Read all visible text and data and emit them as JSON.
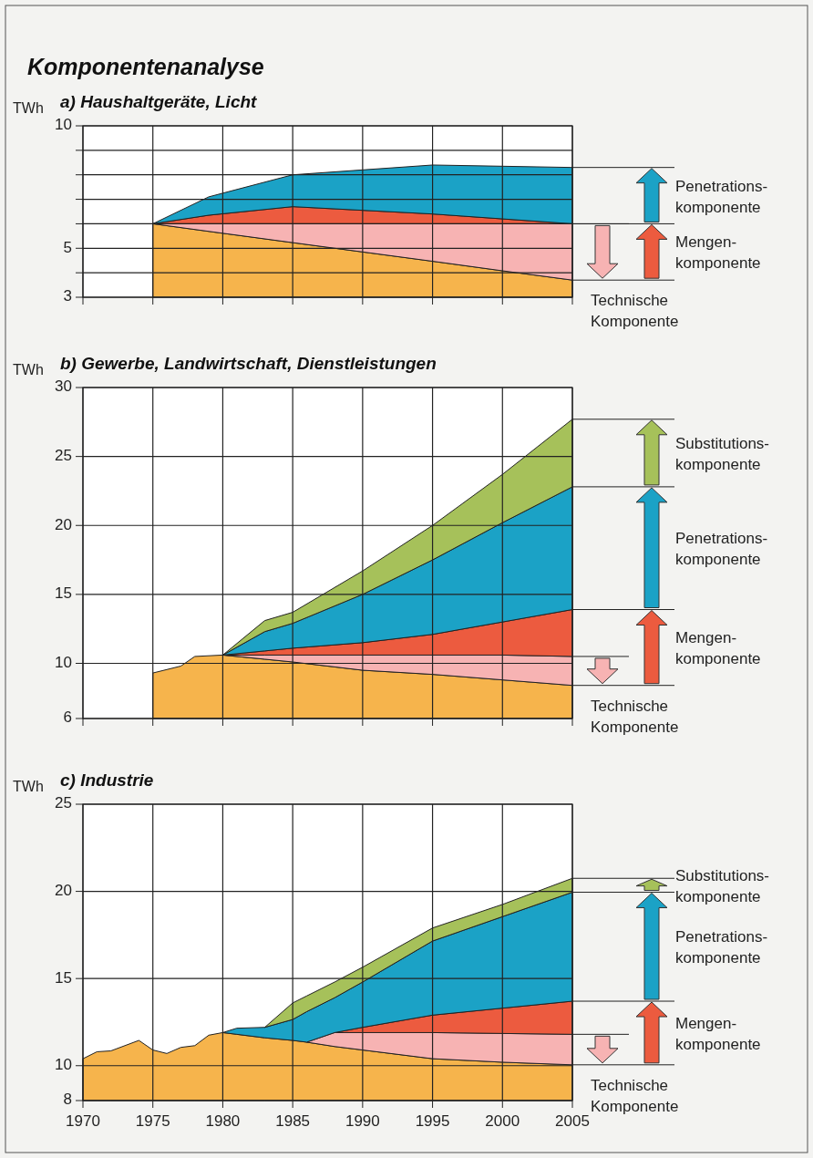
{
  "chart_data": [
    {
      "type": "area",
      "title": "Komponentenanalyse",
      "subtitle": "a) Haushaltgeräte, Licht",
      "ylabel": "TWh",
      "x": [
        1975,
        1979,
        1985,
        1990,
        1995,
        2000,
        2005
      ],
      "series": [
        {
          "color": "#f6b44c",
          "values": [
            6.0,
            5.69,
            5.23,
            4.85,
            4.47,
            4.08,
            3.7
          ]
        },
        {
          "name": "Technische Komponente",
          "color": "#f7b3b3",
          "values": [
            6.0,
            6.0,
            6.0,
            6.0,
            6.0,
            6.0,
            6.0
          ]
        },
        {
          "name": "Mengen- komponente",
          "color": "#ec5b3f",
          "values": [
            6.0,
            6.35,
            6.7,
            6.55,
            6.4,
            6.2,
            6.0
          ]
        },
        {
          "name": "Penetrations- komponente",
          "color": "#1ba2c6",
          "values": [
            6.0,
            7.1,
            8.0,
            8.2,
            8.4,
            8.35,
            8.3
          ]
        }
      ],
      "xlim": [
        1970,
        2005
      ],
      "xticks": [
        1970,
        1975,
        1980,
        1985,
        1990,
        1995,
        2000,
        2005
      ],
      "ylim": [
        3,
        10
      ],
      "yticks": [
        3,
        {
          "value": 4,
          "label": null
        },
        5,
        {
          "value": 6,
          "label": null
        },
        {
          "value": 7,
          "label": null
        },
        {
          "value": 8,
          "label": null
        },
        {
          "value": 9,
          "label": null
        },
        10
      ],
      "grid": true,
      "tick_labels": "y"
    },
    {
      "type": "area",
      "title": "b) Gewerbe, Landwirtschaft, Dienstleistungen",
      "ylabel": "TWh",
      "x": [
        1975,
        1977,
        1978,
        1980,
        1983,
        1985,
        1990,
        1995,
        2000,
        2005
      ],
      "series": [
        {
          "color": "#f6b44c",
          "values": [
            9.3,
            9.8,
            10.5,
            10.6,
            10.3,
            10.1,
            9.5,
            9.2,
            8.8,
            8.4
          ]
        },
        {
          "name": "Technische Komponente",
          "color": "#f7b3b3",
          "values": [
            null,
            null,
            null,
            10.6,
            10.6,
            10.6,
            10.6,
            10.6,
            10.6,
            10.5
          ]
        },
        {
          "name": "Mengen- komponente",
          "color": "#ec5b3f",
          "values": [
            null,
            null,
            null,
            10.6,
            10.9,
            11.1,
            11.5,
            12.1,
            13.0,
            13.9
          ]
        },
        {
          "name": "Penetrations- komponente",
          "color": "#1ba2c6",
          "values": [
            null,
            null,
            null,
            10.6,
            12.3,
            12.9,
            15.0,
            17.5,
            20.2,
            22.8
          ]
        },
        {
          "name": "Substitutions- komponente",
          "color": "#a6c15a",
          "values": [
            null,
            null,
            null,
            10.6,
            13.1,
            13.7,
            16.7,
            20.0,
            23.7,
            27.7
          ]
        }
      ],
      "xlim": [
        1970,
        2005
      ],
      "xticks": [
        1970,
        1975,
        1980,
        1985,
        1990,
        1995,
        2000,
        2005
      ],
      "ylim": [
        6,
        30
      ],
      "yticks": [
        6,
        10,
        15,
        20,
        25,
        30
      ],
      "grid": true,
      "tick_labels": "y"
    },
    {
      "type": "area",
      "title": "c) Industrie",
      "ylabel": "TWh",
      "x": [
        1970,
        1971,
        1972,
        1973,
        1974,
        1975,
        1976,
        1977,
        1978,
        1979,
        1980,
        1981,
        1983,
        1985,
        1986,
        1988,
        1990,
        1995,
        2000,
        2005
      ],
      "series": [
        {
          "color": "#f6b44c",
          "values": [
            10.4,
            10.8,
            10.85,
            11.15,
            11.45,
            10.9,
            10.7,
            11.05,
            11.15,
            11.75,
            11.9,
            11.8,
            11.6,
            11.45,
            11.35,
            11.1,
            10.9,
            10.4,
            10.2,
            10.05
          ]
        },
        {
          "name": "Technische Komponente",
          "color": "#f7b3b3",
          "values": [
            null,
            null,
            null,
            null,
            null,
            null,
            null,
            null,
            null,
            null,
            null,
            null,
            null,
            null,
            11.35,
            11.9,
            11.9,
            11.9,
            11.85,
            11.8
          ]
        },
        {
          "name": "Mengen- komponente",
          "color": "#ec5b3f",
          "values": [
            null,
            null,
            null,
            null,
            null,
            null,
            null,
            null,
            null,
            null,
            null,
            null,
            null,
            null,
            null,
            11.9,
            12.2,
            12.9,
            13.3,
            13.7
          ]
        },
        {
          "name": "Penetrations- komponente",
          "color": "#1ba2c6",
          "values": [
            null,
            null,
            null,
            null,
            null,
            null,
            null,
            null,
            null,
            null,
            11.9,
            12.15,
            12.2,
            12.65,
            13.1,
            13.9,
            14.8,
            17.15,
            18.55,
            19.95
          ]
        },
        {
          "name": "Substitutions- komponente",
          "color": "#a6c15a",
          "values": [
            null,
            null,
            null,
            null,
            null,
            null,
            null,
            null,
            null,
            null,
            null,
            null,
            12.2,
            13.6,
            14.0,
            14.8,
            15.65,
            17.9,
            19.25,
            20.75
          ]
        }
      ],
      "xlim": [
        1970,
        2005
      ],
      "xticks": [
        1970,
        1975,
        1980,
        1985,
        1990,
        1995,
        2000,
        2005
      ],
      "ylim": [
        8,
        25
      ],
      "yticks": [
        8,
        10,
        15,
        20,
        25
      ],
      "grid": true
    }
  ]
}
